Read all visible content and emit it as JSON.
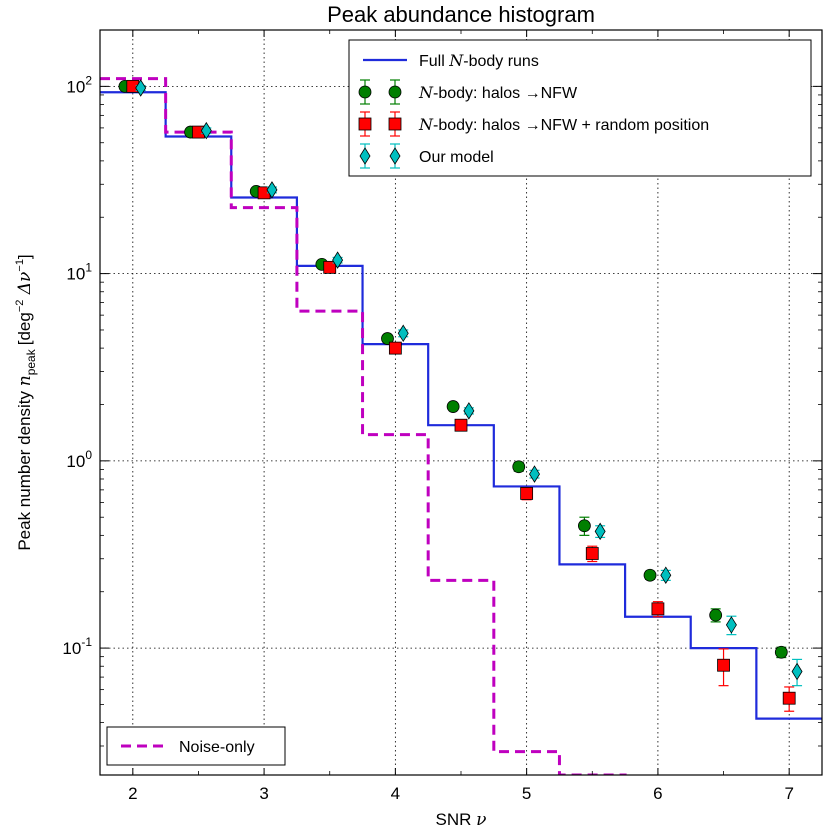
{
  "chart_data": {
    "type": "histogram-with-points",
    "title": "Peak abundance histogram",
    "xlabel": {
      "prefix": "SNR ",
      "symbol": "ν"
    },
    "ylabel": {
      "prefix": "Peak number density ",
      "symbol": "n",
      "sub": "peak",
      "units_open": "[deg",
      "units_exp": "−2",
      "units_mid": " Δν",
      "units_exp2": "−1",
      "units_close": "]"
    },
    "xlim": [
      1.75,
      7.25
    ],
    "ylim": [
      0.021,
      200
    ],
    "yscale": "log",
    "grid": true,
    "xticks": [
      2,
      3,
      4,
      5,
      6,
      7
    ],
    "xtick_labels": [
      "2",
      "3",
      "4",
      "5",
      "6",
      "7"
    ],
    "yticks": [
      {
        "value": 0.1,
        "base": "10",
        "exp": "-1"
      },
      {
        "value": 1,
        "base": "10",
        "exp": "0"
      },
      {
        "value": 10,
        "base": "10",
        "exp": "1"
      },
      {
        "value": 100,
        "base": "10",
        "exp": "2"
      }
    ],
    "bin_edges": [
      1.75,
      2.25,
      2.75,
      3.25,
      3.75,
      4.25,
      4.75,
      5.25,
      5.75,
      6.25,
      6.75,
      7.25
    ],
    "steps": [
      {
        "name": "Full N-body runs",
        "color": "#1f2bdb",
        "dashed": false,
        "values": [
          93,
          54,
          25.5,
          11,
          4.2,
          1.55,
          0.73,
          0.28,
          0.147,
          0.1,
          0.042
        ]
      },
      {
        "name": "Noise-only",
        "color": "#bf00bf",
        "dashed": true,
        "values": [
          110,
          57,
          22.5,
          6.3,
          1.38,
          0.23,
          0.028,
          0.021,
          null,
          null,
          null
        ]
      }
    ],
    "points": [
      {
        "name": "halos_nfw",
        "marker": "circle",
        "color": "#007f00",
        "errcolor": "#007f00",
        "offset": -0.06,
        "x": [
          2,
          2.5,
          3,
          3.5,
          4,
          4.5,
          5,
          5.5,
          6,
          6.5,
          7
        ],
        "y": [
          100,
          57,
          27.5,
          11.2,
          4.5,
          1.95,
          0.93,
          0.45,
          0.245,
          0.15,
          0.095
        ],
        "err": [
          3,
          2,
          1,
          0.4,
          0.2,
          0.07,
          0.05,
          0.05,
          0.012,
          0.012,
          0.006
        ]
      },
      {
        "name": "halos_nfw_random",
        "marker": "square",
        "color": "#ff0000",
        "errcolor": "#ff0000",
        "offset": 0,
        "x": [
          2,
          2.5,
          3,
          3.5,
          4,
          4.5,
          5,
          5.5,
          6,
          6.5,
          7
        ],
        "y": [
          100,
          57,
          27,
          10.8,
          4,
          1.55,
          0.67,
          0.32,
          0.162,
          0.081,
          0.054
        ],
        "err": [
          3,
          2,
          1,
          0.4,
          0.25,
          0.07,
          0.05,
          0.03,
          0.015,
          0.018,
          0.008
        ]
      },
      {
        "name": "our_model",
        "marker": "diamond",
        "color": "#00bfbf",
        "errcolor": "#00bfbf",
        "offset": 0.06,
        "x": [
          2,
          2.5,
          3,
          3.5,
          4,
          4.5,
          5,
          5.5,
          6,
          6.5,
          7
        ],
        "y": [
          98,
          58,
          28,
          11.8,
          4.8,
          1.85,
          0.85,
          0.42,
          0.245,
          0.133,
          0.075
        ],
        "err": [
          3,
          2,
          1,
          0.4,
          0.2,
          0.07,
          0.04,
          0.03,
          0.015,
          0.015,
          0.012
        ]
      }
    ],
    "legend_top": [
      {
        "key": "full",
        "prefix": "Full ",
        "math": "N",
        "suffix": "-body runs"
      },
      {
        "key": "halos_nfw",
        "prefix": "",
        "math": "N",
        "suffix": "-body: halos →NFW"
      },
      {
        "key": "halos_nfw_random",
        "prefix": "",
        "math": "N",
        "suffix": "-body: halos →NFW + random position"
      },
      {
        "key": "our_model",
        "prefix": "",
        "math": "",
        "suffix": "Our model"
      }
    ],
    "legend_bottom": [
      {
        "key": "noise",
        "text": "Noise-only"
      }
    ]
  }
}
